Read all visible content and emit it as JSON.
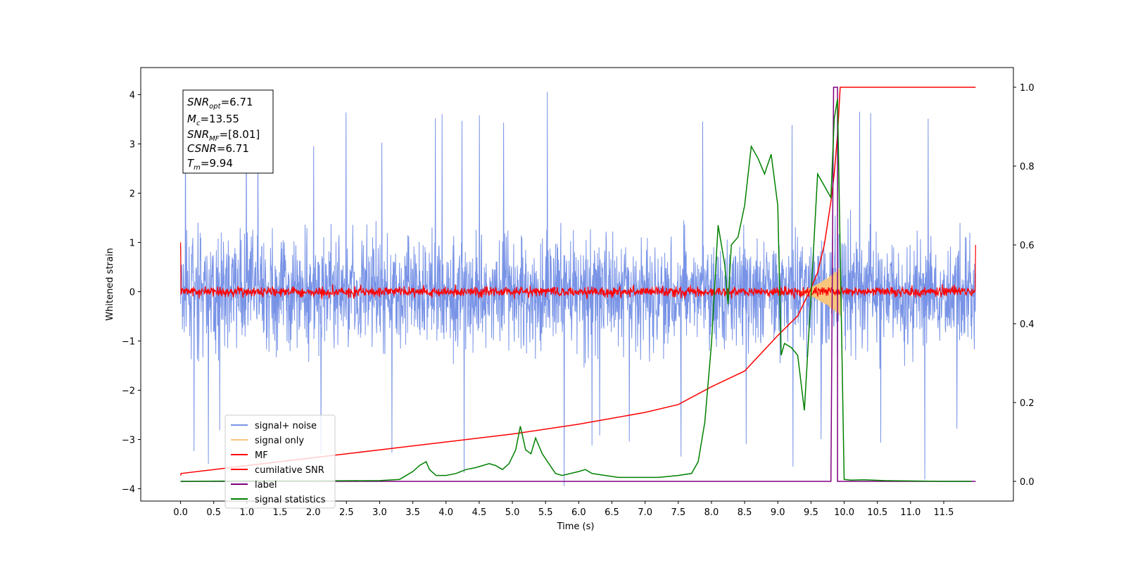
{
  "chart_data": {
    "type": "line",
    "xlabel": "Time (s)",
    "ylabel": "Whitened strain",
    "xlim": [
      -0.6,
      12.55
    ],
    "ylim": [
      -4.25,
      4.55
    ],
    "y2lim": [
      -0.05,
      1.05
    ],
    "x_ticks": [
      "0.0",
      "0.5",
      "1.0",
      "1.5",
      "2.0",
      "2.5",
      "3.0",
      "3.5",
      "4.0",
      "4.5",
      "5.0",
      "5.5",
      "6.0",
      "6.5",
      "7.0",
      "7.5",
      "8.0",
      "8.5",
      "9.0",
      "9.5",
      "10.0",
      "10.5",
      "11.0",
      "11.5"
    ],
    "y_ticks": [
      "4",
      "3",
      "2",
      "1",
      "0",
      "−1",
      "−2",
      "−3",
      "−4"
    ],
    "y2_ticks": [
      "1.0",
      "0.8",
      "0.6",
      "0.4",
      "0.2",
      "0.0"
    ],
    "annotation": {
      "snr_opt": {
        "base": "SNR",
        "sub": "opt",
        "value": "=6.71"
      },
      "mc": {
        "base": "M",
        "sub": "c",
        "value": "=13.55"
      },
      "snr_mf": {
        "base": "SNR",
        "sub": "MF",
        "value": "=[8.01]"
      },
      "csnr": {
        "base": "CSNR",
        "value": "=6.71"
      },
      "tm": {
        "base": "T",
        "sub": "m",
        "value": "=9.94"
      }
    },
    "legend": {
      "placement": "lower left",
      "items": [
        {
          "label": "signal+ noise",
          "color": "#7893e6"
        },
        {
          "label": "signal only",
          "color": "#f7c67c"
        },
        {
          "label": "MF",
          "color": "#ff0000"
        },
        {
          "label": "cumilative SNR",
          "color": "#ff0000"
        },
        {
          "label": "label",
          "color": "#800080"
        },
        {
          "label": "signal statistics",
          "color": "#008000"
        }
      ]
    },
    "series": [
      {
        "name": "signal+ noise",
        "color": "#7893e6",
        "axis": "left",
        "style": "noise",
        "x_range": [
          0.0,
          11.98
        ],
        "band": [
          -2.4,
          2.5
        ],
        "peak_max": 4.15,
        "peak_min": -3.95
      },
      {
        "name": "signal only",
        "color": "#f7c67c",
        "axis": "left",
        "style": "chirp",
        "x_range": [
          9.3,
          9.94
        ],
        "amplitude_max": 0.5
      },
      {
        "name": "MF",
        "color": "#ff0000",
        "axis": "left",
        "style": "noise",
        "x_range": [
          0.0,
          11.98
        ],
        "band": [
          -0.15,
          0.2
        ],
        "edge_values": [
          1.0,
          0.95
        ]
      },
      {
        "name": "cumilative SNR",
        "color": "#ff0000",
        "axis": "right",
        "x": [
          0.0,
          0.01,
          1.0,
          2.0,
          3.0,
          4.0,
          5.0,
          6.0,
          7.0,
          7.5,
          8.0,
          8.5,
          9.0,
          9.3,
          9.5,
          9.6,
          9.7,
          9.8,
          9.85,
          9.9,
          9.94,
          9.95,
          11.98
        ],
        "y": [
          0.015,
          0.02,
          0.04,
          0.06,
          0.08,
          0.1,
          0.12,
          0.145,
          0.175,
          0.195,
          0.24,
          0.28,
          0.37,
          0.42,
          0.49,
          0.53,
          0.6,
          0.71,
          0.78,
          0.88,
          1.0,
          1.0,
          1.0
        ]
      },
      {
        "name": "label",
        "color": "#800080",
        "axis": "right",
        "x": [
          0.0,
          9.8,
          9.84,
          9.9,
          9.9,
          9.98,
          9.98,
          11.98
        ],
        "y": [
          0.0,
          0.0,
          1.0,
          1.0,
          0.0,
          0.0,
          0.0,
          0.0
        ]
      },
      {
        "name": "signal statistics",
        "color": "#008000",
        "axis": "right",
        "x": [
          0.0,
          1.0,
          2.0,
          3.0,
          3.3,
          3.5,
          3.6,
          3.7,
          3.75,
          3.85,
          4.0,
          4.15,
          4.3,
          4.45,
          4.55,
          4.65,
          4.75,
          4.85,
          4.95,
          5.05,
          5.12,
          5.2,
          5.28,
          5.35,
          5.45,
          5.55,
          5.65,
          5.75,
          6.0,
          6.1,
          6.2,
          6.4,
          6.6,
          6.8,
          7.0,
          7.2,
          7.5,
          7.7,
          7.8,
          7.9,
          8.0,
          8.1,
          8.2,
          8.25,
          8.3,
          8.4,
          8.5,
          8.6,
          8.7,
          8.8,
          8.9,
          9.0,
          9.05,
          9.1,
          9.2,
          9.3,
          9.4,
          9.5,
          9.6,
          9.7,
          9.8,
          9.85,
          9.9,
          10.0,
          10.1,
          10.3,
          10.6,
          11.0,
          11.5,
          11.92
        ],
        "y": [
          0.0,
          0.001,
          0.001,
          0.002,
          0.005,
          0.025,
          0.04,
          0.05,
          0.03,
          0.015,
          0.015,
          0.02,
          0.03,
          0.035,
          0.04,
          0.045,
          0.04,
          0.03,
          0.045,
          0.08,
          0.14,
          0.08,
          0.07,
          0.11,
          0.07,
          0.045,
          0.02,
          0.015,
          0.025,
          0.03,
          0.02,
          0.015,
          0.01,
          0.01,
          0.01,
          0.01,
          0.015,
          0.02,
          0.05,
          0.15,
          0.35,
          0.65,
          0.55,
          0.45,
          0.6,
          0.62,
          0.7,
          0.85,
          0.82,
          0.78,
          0.83,
          0.7,
          0.32,
          0.35,
          0.34,
          0.32,
          0.18,
          0.47,
          0.78,
          0.75,
          0.72,
          0.92,
          0.97,
          0.005,
          0.003,
          0.004,
          0.002,
          0.001,
          0.0,
          0.0
        ]
      }
    ]
  }
}
